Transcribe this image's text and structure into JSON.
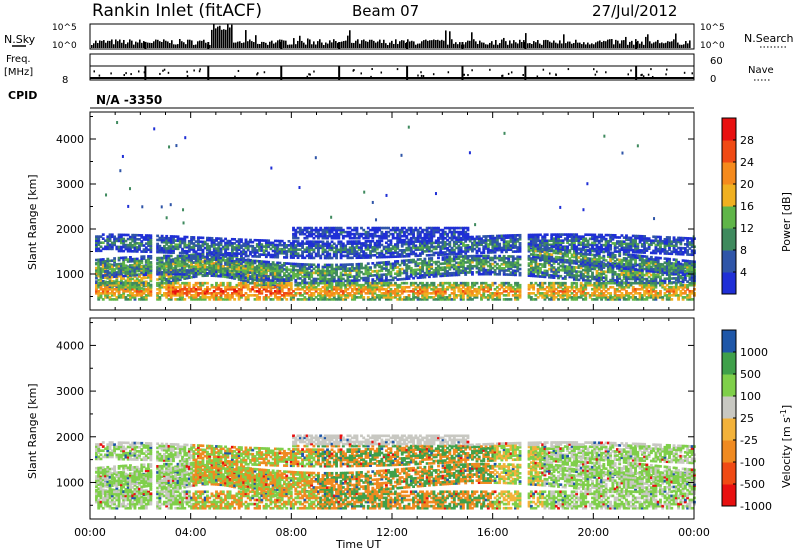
{
  "header": {
    "station": "Rankin Inlet (fitACF)",
    "beam": "Beam 07",
    "date": "27/Jul/2012"
  },
  "top_panels": {
    "nsky_label": "N.Sky",
    "nsearch_label": "N.Search",
    "nsky_ticks": [
      "10^5",
      "10^0"
    ],
    "nsearch_ticks": [
      "10^5",
      "10^0"
    ],
    "freq_label_1": "Freq.",
    "freq_label_2": "[MHz]",
    "freq_tick": "8",
    "nave_ticks": [
      "60",
      "0"
    ],
    "nave_label": "Nave",
    "cpid_label": "CPID",
    "cpid_value": "N/A -3350"
  },
  "colors": {
    "power_scale": [
      "#1f2fd6",
      "#2f55a8",
      "#3f8a5e",
      "#5fb548",
      "#f0b020",
      "#f58a1c",
      "#f04a14",
      "#e81010"
    ],
    "velocity_scale": [
      "#e81010",
      "#f04a14",
      "#f08a20",
      "#f3b23a",
      "#c8c8c2",
      "#7fcf4a",
      "#3fa04a",
      "#1f57a8"
    ]
  },
  "chart_data": [
    {
      "type": "heatmap",
      "panel": "power",
      "ylabel": "Slant Range [km]",
      "yticks": [
        "1000",
        "2000",
        "3000",
        "4000"
      ],
      "ylim": [
        200,
        4600
      ],
      "xlim": [
        0,
        24
      ],
      "colorbar_label": "Power [dB]",
      "colorbar_ticks": [
        "4",
        "8",
        "12",
        "16",
        "20",
        "24",
        "28"
      ],
      "colorbar_range": [
        0,
        32
      ]
    },
    {
      "type": "heatmap",
      "panel": "velocity",
      "ylabel": "Slant Range [km]",
      "yticks": [
        "1000",
        "2000",
        "3000",
        "4000"
      ],
      "ylim": [
        200,
        4600
      ],
      "xlim": [
        0,
        24
      ],
      "xlabel": "Time UT",
      "xticks": [
        "00:00",
        "04:00",
        "08:00",
        "12:00",
        "16:00",
        "20:00",
        "00:00"
      ],
      "colorbar_label_main": "Velocity  [m s",
      "colorbar_label_sup": "-1",
      "colorbar_label_end": "]",
      "colorbar_ticks": [
        "1000",
        "500",
        "100",
        "25",
        "-25",
        "-100",
        "-500",
        "-1000"
      ]
    }
  ]
}
